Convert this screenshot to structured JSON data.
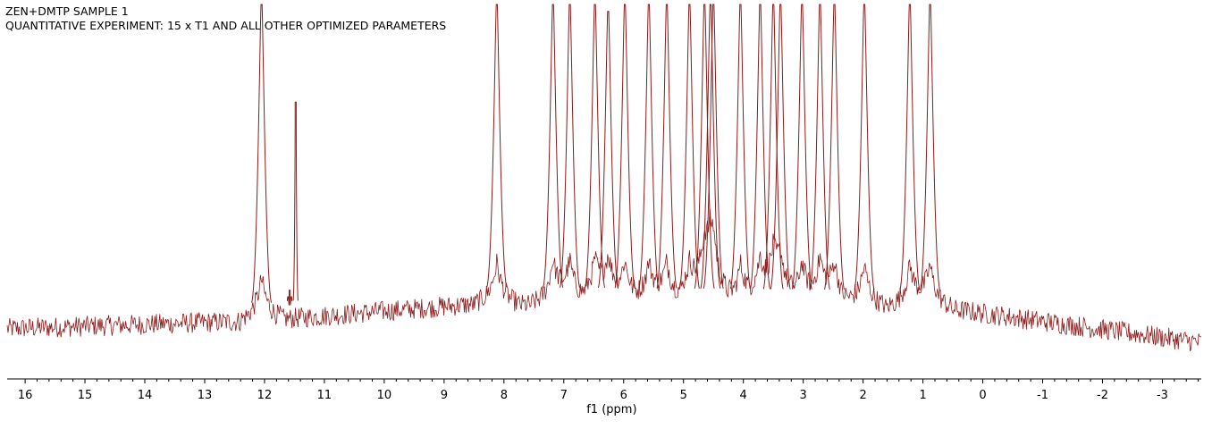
{
  "header": {
    "line1": "ZEN+DMTP SAMPLE 1",
    "line2": "QUANTITATIVE EXPERIMENT: 15 x T1 AND ALL OTHER OPTIMIZED PARAMETERS"
  },
  "chart_data": {
    "type": "line",
    "xlabel": "f1 (ppm)",
    "ylabel": "",
    "xlim": [
      16.3,
      -3.65
    ],
    "x_reversed": true,
    "ticks": [
      16,
      15,
      14,
      13,
      12,
      11,
      10,
      9,
      8,
      7,
      6,
      5,
      4,
      3,
      2,
      1,
      0,
      -1,
      -2,
      -3
    ],
    "tick_labels": [
      "16",
      "15",
      "14",
      "13",
      "12",
      "11",
      "10",
      "9",
      "8",
      "7",
      "6",
      "5",
      "4",
      "3",
      "2",
      "1",
      "0",
      "-1",
      "-2",
      "-3"
    ],
    "grid": false,
    "line_color": "#8b1a1a",
    "baseline": [
      {
        "ppm": 16.3,
        "level": 0.07
      },
      {
        "ppm": 12.5,
        "level": 0.09
      },
      {
        "ppm": 11.5,
        "level": 0.1
      },
      {
        "ppm": 8.5,
        "level": 0.14
      },
      {
        "ppm": 0.7,
        "level": 0.13
      },
      {
        "ppm": -3.65,
        "level": 0.03
      }
    ],
    "peaks": [
      {
        "ppm": 12.05,
        "height": 1.0
      },
      {
        "ppm": 11.48,
        "height": 0.72
      },
      {
        "ppm": 11.58,
        "height": 0.18
      },
      {
        "ppm": 8.12,
        "height": 1.0
      },
      {
        "ppm": 7.18,
        "height": 1.0
      },
      {
        "ppm": 6.9,
        "height": 1.0
      },
      {
        "ppm": 6.48,
        "height": 1.0
      },
      {
        "ppm": 6.26,
        "height": 0.98
      },
      {
        "ppm": 5.98,
        "height": 1.0
      },
      {
        "ppm": 5.58,
        "height": 1.0
      },
      {
        "ppm": 5.28,
        "height": 1.0
      },
      {
        "ppm": 4.9,
        "height": 1.0
      },
      {
        "ppm": 4.65,
        "height": 1.0
      },
      {
        "ppm": 4.55,
        "height": 1.0
      },
      {
        "ppm": 4.5,
        "height": 1.0
      },
      {
        "ppm": 4.05,
        "height": 1.0
      },
      {
        "ppm": 3.72,
        "height": 1.0
      },
      {
        "ppm": 3.5,
        "height": 1.0
      },
      {
        "ppm": 3.38,
        "height": 1.0
      },
      {
        "ppm": 3.02,
        "height": 1.0
      },
      {
        "ppm": 2.72,
        "height": 1.0
      },
      {
        "ppm": 2.48,
        "height": 1.0
      },
      {
        "ppm": 1.98,
        "height": 1.0
      },
      {
        "ppm": 1.22,
        "height": 1.0
      },
      {
        "ppm": 0.88,
        "height": 1.0
      }
    ]
  }
}
